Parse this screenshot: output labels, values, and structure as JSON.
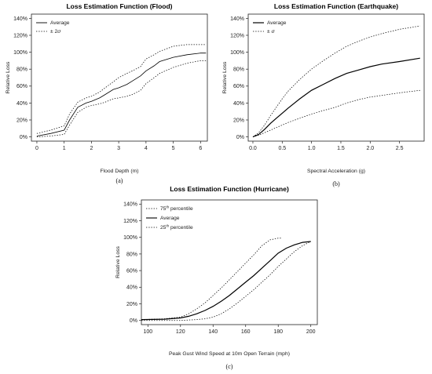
{
  "chart_data": [
    {
      "type": "line",
      "panel_label": "(a)",
      "title": "Loss Estimation Function (Flood)",
      "xlabel": "Flood Depth (m)",
      "ylabel": "Relative Loss",
      "xlim": [
        -0.2,
        6.25
      ],
      "ylim": [
        -0.05,
        1.45
      ],
      "xticks": [
        0,
        1,
        2,
        3,
        4,
        5,
        6
      ],
      "xtick_labels": [
        "0",
        "1",
        "2",
        "3",
        "4",
        "5",
        "6"
      ],
      "yticks": [
        0,
        0.2,
        0.4,
        0.6,
        0.8,
        1.0,
        1.2,
        1.4
      ],
      "ytick_labels": [
        "0%",
        "20%",
        "40%",
        "60%",
        "80%",
        "100%",
        "120%",
        "140%"
      ],
      "legend_position": "top-left",
      "legend_prefix": "± 2",
      "legend_symbol": "σ",
      "series": [
        {
          "name": "Average",
          "style": "solid",
          "x": [
            0,
            0.5,
            1.0,
            1.2,
            1.5,
            1.8,
            2.0,
            2.3,
            2.5,
            2.8,
            3.0,
            3.3,
            3.5,
            3.8,
            4.0,
            4.3,
            4.5,
            5.0,
            5.5,
            6.0,
            6.2
          ],
          "y": [
            0.01,
            0.04,
            0.08,
            0.2,
            0.35,
            0.4,
            0.42,
            0.46,
            0.5,
            0.56,
            0.58,
            0.62,
            0.66,
            0.72,
            0.78,
            0.84,
            0.89,
            0.94,
            0.97,
            0.99,
            0.99
          ]
        },
        {
          "name": "± 2σ",
          "style": "dotted",
          "x": [
            0,
            0.5,
            1.0,
            1.2,
            1.5,
            1.8,
            2.0,
            2.3,
            2.5,
            2.8,
            3.0,
            3.3,
            3.5,
            3.8,
            4.0,
            4.3,
            4.5,
            5.0,
            5.5,
            6.0,
            6.2
          ],
          "y": [
            0.04,
            0.08,
            0.13,
            0.27,
            0.41,
            0.46,
            0.48,
            0.53,
            0.58,
            0.65,
            0.7,
            0.75,
            0.78,
            0.83,
            0.92,
            0.97,
            1.01,
            1.07,
            1.09,
            1.09,
            1.09
          ]
        },
        {
          "name": "",
          "style": "dotted",
          "x": [
            0,
            0.5,
            1.0,
            1.2,
            1.5,
            1.8,
            2.0,
            2.3,
            2.5,
            2.8,
            3.0,
            3.3,
            3.5,
            3.8,
            4.0,
            4.3,
            4.5,
            5.0,
            5.5,
            6.0,
            6.2
          ],
          "y": [
            0.0,
            0.01,
            0.03,
            0.14,
            0.29,
            0.35,
            0.37,
            0.39,
            0.41,
            0.45,
            0.46,
            0.48,
            0.5,
            0.55,
            0.63,
            0.7,
            0.75,
            0.82,
            0.87,
            0.9,
            0.9
          ]
        }
      ]
    },
    {
      "type": "line",
      "panel_label": "(b)",
      "title": "Loss Estimation Function (Earthquake)",
      "xlabel": "Spectral Acceleration (g)",
      "ylabel": "Relative Loss",
      "xlim": [
        -0.08,
        2.92
      ],
      "ylim": [
        -0.05,
        1.45
      ],
      "xticks": [
        0,
        0.5,
        1.0,
        1.5,
        2.0,
        2.5
      ],
      "xtick_labels": [
        "0.0",
        "0.5",
        "1.0",
        "1.5",
        "2.0",
        "2.5"
      ],
      "yticks": [
        0,
        0.2,
        0.4,
        0.6,
        0.8,
        1.0,
        1.2,
        1.4
      ],
      "ytick_labels": [
        "0%",
        "20%",
        "40%",
        "60%",
        "80%",
        "100%",
        "120%",
        "140%"
      ],
      "legend_position": "top-left",
      "legend_prefix": "± ",
      "legend_symbol": "σ",
      "series": [
        {
          "name": "Average",
          "style": "solid",
          "x": [
            0,
            0.1,
            0.2,
            0.3,
            0.4,
            0.5,
            0.6,
            0.8,
            1.0,
            1.2,
            1.4,
            1.6,
            1.8,
            2.0,
            2.2,
            2.5,
            2.85
          ],
          "y": [
            0,
            0.03,
            0.09,
            0.16,
            0.22,
            0.28,
            0.34,
            0.45,
            0.55,
            0.62,
            0.69,
            0.75,
            0.79,
            0.83,
            0.86,
            0.89,
            0.93
          ]
        },
        {
          "name": "± σ",
          "style": "dotted",
          "x": [
            0,
            0.1,
            0.2,
            0.3,
            0.4,
            0.5,
            0.6,
            0.8,
            1.0,
            1.2,
            1.4,
            1.6,
            1.8,
            2.0,
            2.2,
            2.5,
            2.85
          ],
          "y": [
            0,
            0.05,
            0.14,
            0.25,
            0.35,
            0.45,
            0.54,
            0.68,
            0.8,
            0.9,
            0.99,
            1.07,
            1.13,
            1.18,
            1.22,
            1.27,
            1.31
          ]
        },
        {
          "name": "",
          "style": "dotted",
          "x": [
            0,
            0.1,
            0.2,
            0.3,
            0.4,
            0.5,
            0.6,
            0.8,
            1.0,
            1.2,
            1.4,
            1.6,
            1.8,
            2.0,
            2.2,
            2.5,
            2.85
          ],
          "y": [
            0,
            0.02,
            0.05,
            0.08,
            0.11,
            0.14,
            0.17,
            0.22,
            0.27,
            0.31,
            0.35,
            0.4,
            0.44,
            0.47,
            0.49,
            0.52,
            0.55
          ]
        }
      ]
    },
    {
      "type": "line",
      "panel_label": "(c)",
      "title": "Loss Estimation Function (Hurricane)",
      "xlabel": "Peak Gust Wind Speed at 10m Open Terrain (mph)",
      "ylabel": "Relative Loss",
      "xlim": [
        96,
        204
      ],
      "ylim": [
        -0.05,
        1.45
      ],
      "xticks": [
        100,
        120,
        140,
        160,
        180,
        200
      ],
      "xtick_labels": [
        "100",
        "120",
        "140",
        "160",
        "180",
        "200"
      ],
      "yticks": [
        0,
        0.2,
        0.4,
        0.6,
        0.8,
        1.0,
        1.2,
        1.4
      ],
      "ytick_labels": [
        "0%",
        "20%",
        "40%",
        "60%",
        "80%",
        "100%",
        "120%",
        "140%"
      ],
      "legend_position": "top-left",
      "legend_lines": [
        {
          "pre": "75",
          "sup": "th",
          "post": " percentile",
          "style": "dotted"
        },
        {
          "pre": "Average",
          "sup": "",
          "post": "",
          "style": "solid"
        },
        {
          "pre": "25",
          "sup": "th",
          "post": " percentile",
          "style": "dotted"
        }
      ],
      "series": [
        {
          "name": "75th percentile",
          "style": "dotted",
          "x": [
            96,
            110,
            120,
            125,
            130,
            135,
            140,
            145,
            150,
            155,
            160,
            165,
            170,
            175,
            180,
            182
          ],
          "y": [
            0.01,
            0.02,
            0.04,
            0.08,
            0.14,
            0.21,
            0.3,
            0.39,
            0.49,
            0.59,
            0.69,
            0.79,
            0.9,
            0.97,
            0.99,
            0.99
          ]
        },
        {
          "name": "Average",
          "style": "solid",
          "x": [
            96,
            110,
            120,
            125,
            130,
            135,
            140,
            145,
            150,
            155,
            160,
            165,
            170,
            175,
            180,
            185,
            190,
            195,
            200
          ],
          "y": [
            0.01,
            0.015,
            0.03,
            0.05,
            0.08,
            0.12,
            0.17,
            0.23,
            0.3,
            0.38,
            0.46,
            0.54,
            0.63,
            0.72,
            0.81,
            0.87,
            0.91,
            0.94,
            0.95
          ]
        },
        {
          "name": "25th percentile",
          "style": "dotted",
          "x": [
            96,
            120,
            130,
            135,
            140,
            145,
            150,
            155,
            160,
            165,
            170,
            175,
            180,
            185,
            190,
            195,
            200
          ],
          "y": [
            0.0,
            0.0,
            0.01,
            0.02,
            0.04,
            0.08,
            0.14,
            0.21,
            0.29,
            0.37,
            0.46,
            0.55,
            0.65,
            0.74,
            0.83,
            0.9,
            0.95
          ]
        }
      ]
    }
  ]
}
